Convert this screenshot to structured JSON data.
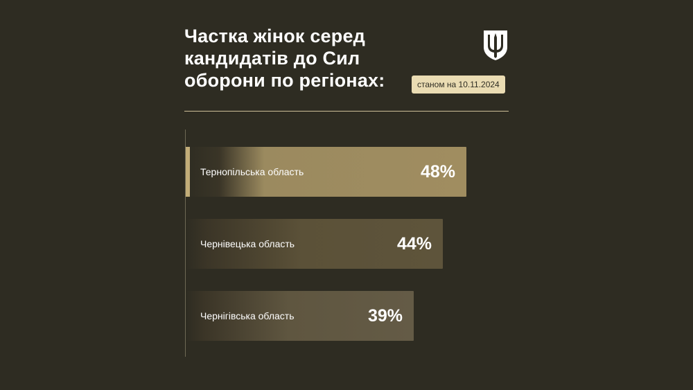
{
  "title": "Частка жінок серед кандидатів до Сил оборони по регіонах:",
  "date_badge": "станом на 10.11.2024",
  "emblem_icon": "trident-icon",
  "colors": {
    "background": "#2e2c22",
    "badge_bg": "#eadcb3",
    "bar_highlight": "#a08d60",
    "bar_base": "#5b5138"
  },
  "chart_data": {
    "type": "bar",
    "orientation": "horizontal",
    "categories": [
      "Тернопільська область",
      "Чернівецька область",
      "Чернігівська область"
    ],
    "values": [
      48,
      44,
      39
    ],
    "value_labels": [
      "48%",
      "44%",
      "39%"
    ],
    "unit": "%",
    "title": "Частка жінок серед кандидатів до Сил оборони по регіонах:",
    "xlabel": "",
    "ylabel": "",
    "grid": false
  }
}
